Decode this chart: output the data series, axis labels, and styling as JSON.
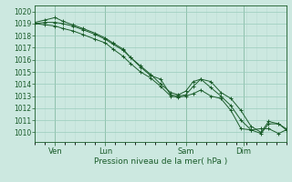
{
  "title": "Pression niveau de la mer( hPa )",
  "bg_color": "#cce8e0",
  "grid_major_color": "#99ccbb",
  "grid_minor_color": "#bbddd4",
  "line_color": "#1a5c2a",
  "ylim": [
    1009.2,
    1020.5
  ],
  "yticks": [
    1010,
    1011,
    1012,
    1013,
    1014,
    1015,
    1016,
    1017,
    1018,
    1019,
    1020
  ],
  "xlim": [
    0,
    100
  ],
  "xtick_positions": [
    8,
    28,
    60,
    83
  ],
  "xtick_labels": [
    "Ven",
    "Lun",
    "Sam",
    "Dim"
  ],
  "vline_positions": [
    8,
    28,
    60,
    83
  ],
  "series1_x": [
    0,
    4,
    8,
    11,
    15,
    19,
    24,
    28,
    31,
    35,
    38,
    42,
    46,
    50,
    54,
    57,
    60,
    63,
    66,
    70,
    74,
    78,
    82,
    86,
    90,
    93,
    97,
    100
  ],
  "series1_y": [
    1019.0,
    1019.1,
    1019.1,
    1019.0,
    1018.8,
    1018.5,
    1018.1,
    1017.7,
    1017.3,
    1016.8,
    1016.2,
    1015.4,
    1014.7,
    1014.4,
    1013.1,
    1013.0,
    1013.1,
    1013.8,
    1014.4,
    1014.2,
    1013.3,
    1012.8,
    1011.8,
    1010.5,
    1010.0,
    1010.9,
    1010.7,
    1010.2
  ],
  "series2_x": [
    0,
    4,
    8,
    11,
    15,
    19,
    24,
    28,
    31,
    35,
    38,
    42,
    46,
    50,
    54,
    57,
    60,
    63,
    66,
    70,
    74,
    78,
    82,
    86,
    90,
    93,
    97,
    100
  ],
  "series2_y": [
    1019.0,
    1018.9,
    1018.8,
    1018.6,
    1018.4,
    1018.1,
    1017.7,
    1017.4,
    1016.9,
    1016.3,
    1015.7,
    1015.0,
    1014.5,
    1013.8,
    1013.0,
    1012.9,
    1013.0,
    1013.2,
    1013.5,
    1013.0,
    1012.8,
    1011.8,
    1010.3,
    1010.2,
    1010.3,
    1010.3,
    1009.9,
    1010.2
  ],
  "series3_x": [
    0,
    4,
    8,
    11,
    15,
    19,
    24,
    28,
    31,
    35,
    38,
    42,
    46,
    50,
    54,
    57,
    60,
    63,
    66,
    70,
    74,
    78,
    82,
    86,
    90,
    93,
    97,
    100
  ],
  "series3_y": [
    1019.1,
    1019.3,
    1019.5,
    1019.2,
    1018.9,
    1018.6,
    1018.2,
    1017.8,
    1017.4,
    1016.9,
    1016.2,
    1015.5,
    1014.8,
    1014.0,
    1013.3,
    1013.1,
    1013.4,
    1014.2,
    1014.4,
    1013.7,
    1013.0,
    1012.2,
    1011.0,
    1010.2,
    1009.9,
    1010.7,
    1010.7,
    1010.3
  ]
}
